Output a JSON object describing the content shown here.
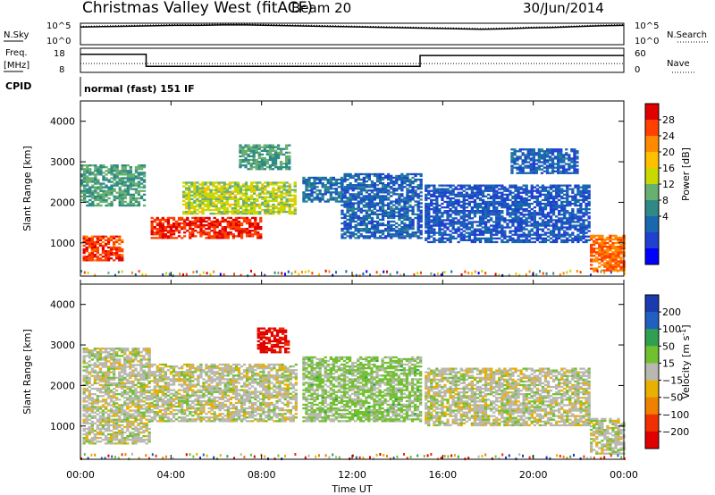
{
  "header": {
    "station": "Christmas Valley West (fitACF)",
    "beam": "Beam 20",
    "date": "30/Jun/2014"
  },
  "noise_panel": {
    "left_label": "N.Sky",
    "right_label": "N.Search",
    "left_ticks": [
      "10^5",
      "10^0"
    ],
    "right_ticks": [
      "10^5",
      "10^0"
    ]
  },
  "freq_panel": {
    "left_label_1": "Freq.",
    "left_label_2": "[MHz]",
    "right_label": "Nave",
    "left_ticks": [
      "18",
      "8"
    ],
    "right_ticks": [
      "60",
      "0"
    ]
  },
  "cpid": {
    "label": "CPID",
    "value": "normal (fast) 151 IF"
  },
  "power_panel": {
    "ylabel": "Slant Range [km]",
    "colorbar_label": "Power [dB]",
    "colorbar_ticks": [
      "28",
      "24",
      "20",
      "16",
      "12",
      "8",
      "4"
    ],
    "colorbar_colors": [
      "#e00000",
      "#ff4000",
      "#ff8a00",
      "#ffc000",
      "#c8d800",
      "#68b070",
      "#2f8a86",
      "#1868b0",
      "#2040d0",
      "#0000ff"
    ]
  },
  "velocity_panel": {
    "ylabel": "Slant Range [km]",
    "colorbar_label": "Velocity [m s",
    "colorbar_unit_sup": "-1",
    "colorbar_label_end": "]",
    "colorbar_ticks": [
      "200",
      "100",
      "50",
      "15",
      "−15",
      "−50",
      "−100",
      "−200"
    ],
    "colorbar_colors": [
      "#1a3ab0",
      "#2060c0",
      "#30a050",
      "#70c030",
      "#b8b8b0",
      "#e8b000",
      "#f08000",
      "#f03000",
      "#e00000"
    ]
  },
  "ytick_labels": [
    "4000",
    "3000",
    "2000",
    "1000"
  ],
  "xaxis": {
    "label": "Time UT",
    "ticks": [
      "00:00",
      "04:00",
      "08:00",
      "12:00",
      "16:00",
      "20:00",
      "00:00"
    ]
  },
  "chart_data": {
    "type": "heatmap",
    "x_range_hours": [
      0,
      24
    ],
    "y_range_km": [
      180,
      4500
    ],
    "y_ticks_km": [
      1000,
      2000,
      3000,
      4000
    ],
    "power_range_db": [
      0,
      30
    ],
    "velocity_range_ms": [
      -250,
      250
    ],
    "power_features": [
      {
        "t0": 0.1,
        "t1": 1.8,
        "r0": 550,
        "r1": 1150,
        "db": 26
      },
      {
        "t0": 0.0,
        "t1": 2.8,
        "r0": 1900,
        "r1": 2900,
        "db": 12
      },
      {
        "t0": 3.1,
        "t1": 8.0,
        "r0": 1100,
        "r1": 1600,
        "db": 27
      },
      {
        "t0": 4.5,
        "t1": 9.5,
        "r0": 1700,
        "r1": 2500,
        "db": 16
      },
      {
        "t0": 7.0,
        "t1": 9.2,
        "r0": 2800,
        "r1": 3400,
        "db": 12
      },
      {
        "t0": 9.8,
        "t1": 11.5,
        "r0": 2000,
        "r1": 2600,
        "db": 8
      },
      {
        "t0": 11.5,
        "t1": 15.0,
        "r0": 1100,
        "r1": 2700,
        "db": 7
      },
      {
        "t0": 15.2,
        "t1": 22.5,
        "r0": 1000,
        "r1": 2400,
        "db": 6
      },
      {
        "t0": 19.0,
        "t1": 22.0,
        "r0": 2700,
        "r1": 3300,
        "db": 7
      },
      {
        "t0": 22.5,
        "t1": 24.0,
        "r0": 300,
        "r1": 1200,
        "db": 24
      }
    ],
    "velocity_features": [
      {
        "t0": 0.1,
        "t1": 3.0,
        "r0": 550,
        "r1": 2900,
        "v": 0
      },
      {
        "t0": 3.1,
        "t1": 9.5,
        "r0": 1100,
        "r1": 2500,
        "v": 0
      },
      {
        "t0": 7.8,
        "t1": 9.2,
        "r0": 2800,
        "r1": 3400,
        "v": -220
      },
      {
        "t0": 9.8,
        "t1": 15.0,
        "r0": 1100,
        "r1": 2700,
        "v": 40
      },
      {
        "t0": 15.2,
        "t1": 22.5,
        "r0": 1000,
        "r1": 2400,
        "v": 0
      },
      {
        "t0": 22.5,
        "t1": 24.0,
        "r0": 300,
        "r1": 1200,
        "v": 0
      }
    ],
    "noise_series": [
      {
        "name": "N.Sky",
        "values": [
          4.1,
          4.2,
          4.3,
          4.4,
          4.5,
          4.5,
          4.6,
          4.6,
          4.5,
          4.4,
          4.3,
          4.2,
          4.1,
          4.0,
          3.9,
          3.8,
          3.7,
          3.6,
          3.7,
          3.9,
          4.0,
          4.2,
          4.4,
          4.5
        ]
      },
      {
        "name": "N.Search",
        "values": [
          4.3,
          4.4,
          4.5,
          4.6,
          4.7,
          4.7,
          4.8,
          4.8,
          4.7,
          4.6,
          4.5,
          4.4,
          4.3,
          4.2,
          4.1,
          4.0,
          3.9,
          3.8,
          3.9,
          4.1,
          4.2,
          4.4,
          4.6,
          4.7
        ]
      }
    ],
    "freq_mhz": [
      {
        "t0": 0.0,
        "t1": 2.9,
        "value": 15.5
      },
      {
        "t0": 2.9,
        "t1": 15.0,
        "value": 10.5
      },
      {
        "t0": 15.0,
        "t1": 24.0,
        "value": 15.0
      }
    ],
    "nave": [
      {
        "t0": 0.0,
        "t1": 24.0,
        "value": 22
      }
    ]
  }
}
